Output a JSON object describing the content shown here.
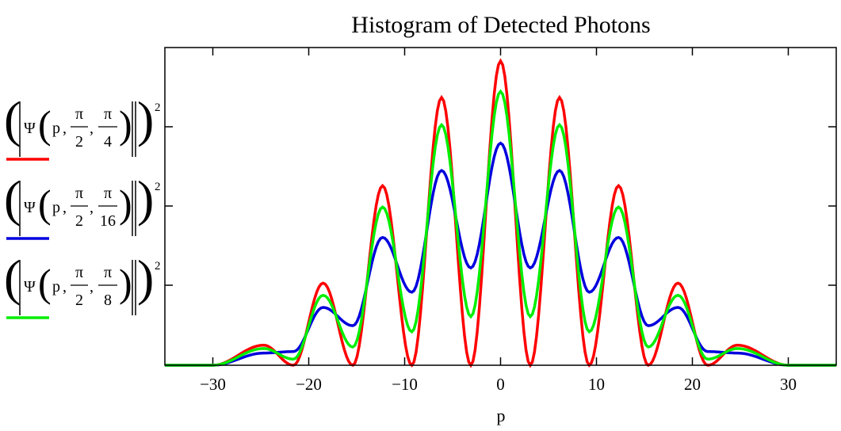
{
  "chart_data": {
    "type": "line",
    "title": "Histogram of Detected Photons",
    "xlabel": "p",
    "ylabel": "",
    "xlim": [
      -35,
      35
    ],
    "x_ticks": [
      -30,
      -20,
      -10,
      0,
      10,
      20,
      30
    ],
    "x_tick_labels": [
      "−30",
      "−20",
      "−10",
      "0",
      "10",
      "20",
      "30"
    ],
    "ylim": [
      0,
      1.0
    ],
    "grid": false,
    "legend_position": "left",
    "series": [
      {
        "name": "(|Ψ(p, π/2, π/4)|)²",
        "args": [
          "p",
          "π",
          "2",
          "π",
          "4"
        ],
        "color": "#ff0000",
        "peaks": [
          [
            -24.7,
            0.066
          ],
          [
            -18.5,
            0.27
          ],
          [
            -12.3,
            0.59
          ],
          [
            -6.15,
            0.88
          ],
          [
            0,
            1.0
          ],
          [
            6.15,
            0.88
          ],
          [
            12.3,
            0.59
          ],
          [
            18.5,
            0.27
          ],
          [
            24.7,
            0.066
          ]
        ],
        "troughs": [
          [
            -21.6,
            0.0
          ],
          [
            -15.4,
            0.0
          ],
          [
            -9.25,
            0.0
          ],
          [
            -3.1,
            0.0
          ],
          [
            3.1,
            0.0
          ],
          [
            9.25,
            0.0
          ],
          [
            15.4,
            0.0
          ],
          [
            21.6,
            0.0
          ]
        ]
      },
      {
        "name": "(|Ψ(p, π/2, π/16)|)²",
        "args": [
          "p",
          "π",
          "2",
          "π",
          "16"
        ],
        "color": "#0000dd",
        "peaks": [
          [
            -24.7,
            0.04
          ],
          [
            -18.5,
            0.19
          ],
          [
            -12.3,
            0.42
          ],
          [
            -6.15,
            0.64
          ],
          [
            0,
            0.73
          ],
          [
            6.15,
            0.64
          ],
          [
            12.3,
            0.42
          ],
          [
            18.5,
            0.19
          ],
          [
            24.7,
            0.04
          ]
        ],
        "troughs": [
          [
            -21.6,
            0.045
          ],
          [
            -15.4,
            0.13
          ],
          [
            -9.25,
            0.24
          ],
          [
            -3.1,
            0.32
          ],
          [
            3.1,
            0.32
          ],
          [
            9.25,
            0.24
          ],
          [
            15.4,
            0.13
          ],
          [
            21.6,
            0.045
          ]
        ]
      },
      {
        "name": "(|Ψ(p, π/2, π/8)|)²",
        "args": [
          "p",
          "π",
          "2",
          "π",
          "8"
        ],
        "color": "#00ee00",
        "peaks": [
          [
            -24.7,
            0.055
          ],
          [
            -18.5,
            0.23
          ],
          [
            -12.3,
            0.52
          ],
          [
            -6.15,
            0.79
          ],
          [
            0,
            0.9
          ],
          [
            6.15,
            0.79
          ],
          [
            12.3,
            0.52
          ],
          [
            18.5,
            0.23
          ],
          [
            24.7,
            0.055
          ]
        ],
        "troughs": [
          [
            -21.6,
            0.02
          ],
          [
            -15.4,
            0.06
          ],
          [
            -9.25,
            0.11
          ],
          [
            -3.1,
            0.16
          ],
          [
            3.1,
            0.16
          ],
          [
            9.25,
            0.11
          ],
          [
            15.4,
            0.06
          ],
          [
            21.6,
            0.02
          ]
        ]
      }
    ]
  }
}
